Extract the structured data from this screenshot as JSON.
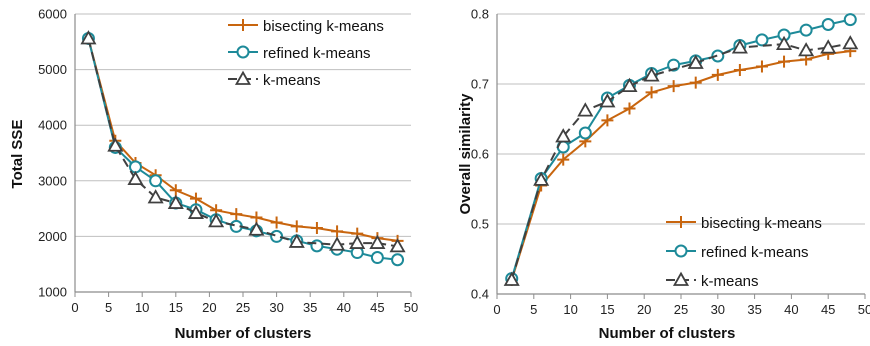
{
  "colors": {
    "bisecting": "#c8650e",
    "refined": "#1d8a99",
    "kmeans": "#404040",
    "grid": "#bfbfbf",
    "axis": "#8c8c8c"
  },
  "chart_data": [
    {
      "type": "line",
      "xlabel": "Number of clusters",
      "ylabel": "Total SSE",
      "xlim": [
        0,
        50
      ],
      "ylim": [
        1000,
        6000
      ],
      "xticks": [
        "0",
        "5",
        "10",
        "15",
        "20",
        "25",
        "30",
        "35",
        "40",
        "45",
        "50"
      ],
      "yticks": [
        "1000",
        "2000",
        "3000",
        "4000",
        "5000",
        "6000"
      ],
      "grid": "horizontal",
      "legend_position": "top-right",
      "series": [
        {
          "name": "bisecting k-means",
          "marker": "plus",
          "x": [
            2,
            6,
            9,
            12,
            15,
            18,
            21,
            24,
            27,
            30,
            33,
            36,
            39,
            42,
            45,
            48
          ],
          "y": [
            5560,
            3720,
            3320,
            3100,
            2830,
            2680,
            2470,
            2400,
            2340,
            2250,
            2180,
            2150,
            2090,
            2050,
            1970,
            1920
          ]
        },
        {
          "name": "refined k-means",
          "marker": "circle",
          "x": [
            2,
            6,
            9,
            12,
            15,
            18,
            21,
            24,
            27,
            30,
            33,
            36,
            39,
            42,
            45,
            48
          ],
          "y": [
            5560,
            3600,
            3250,
            3000,
            2600,
            2480,
            2300,
            2180,
            2100,
            2000,
            1920,
            1830,
            1770,
            1710,
            1620,
            1580
          ]
        },
        {
          "name": "k-means",
          "marker": "triangle",
          "x": [
            2,
            6,
            9,
            12,
            15,
            18,
            21,
            27,
            33,
            39,
            42,
            45,
            48
          ],
          "y": [
            5560,
            3630,
            3030,
            2700,
            2600,
            2420,
            2270,
            2120,
            1900,
            1850,
            1880,
            1880,
            1820
          ]
        }
      ]
    },
    {
      "type": "line",
      "xlabel": "Number of clusters",
      "ylabel": "Overall similarity",
      "xlim": [
        0,
        50
      ],
      "ylim": [
        0.4,
        0.8
      ],
      "xticks": [
        "0",
        "5",
        "10",
        "15",
        "20",
        "25",
        "30",
        "35",
        "40",
        "45",
        "50"
      ],
      "yticks": [
        "0.4",
        "0.5",
        "0.6",
        "0.7",
        "0.8"
      ],
      "grid": "horizontal",
      "legend_position": "bottom-right",
      "series": [
        {
          "name": "bisecting k-means",
          "marker": "plus",
          "x": [
            2,
            6,
            9,
            12,
            15,
            18,
            21,
            24,
            27,
            30,
            33,
            36,
            39,
            42,
            45,
            48
          ],
          "y": [
            0.42,
            0.555,
            0.592,
            0.618,
            0.648,
            0.665,
            0.688,
            0.697,
            0.702,
            0.713,
            0.72,
            0.725,
            0.732,
            0.735,
            0.743,
            0.747
          ]
        },
        {
          "name": "refined k-means",
          "marker": "circle",
          "x": [
            2,
            6,
            9,
            12,
            15,
            18,
            21,
            24,
            27,
            30,
            33,
            36,
            39,
            42,
            45,
            48
          ],
          "y": [
            0.422,
            0.565,
            0.61,
            0.63,
            0.68,
            0.698,
            0.715,
            0.727,
            0.733,
            0.74,
            0.755,
            0.763,
            0.77,
            0.777,
            0.785,
            0.792
          ]
        },
        {
          "name": "k-means",
          "marker": "triangle",
          "x": [
            2,
            6,
            9,
            12,
            15,
            18,
            21,
            27,
            33,
            39,
            42,
            45,
            48
          ],
          "y": [
            0.42,
            0.563,
            0.625,
            0.662,
            0.675,
            0.697,
            0.712,
            0.73,
            0.752,
            0.757,
            0.748,
            0.752,
            0.758
          ]
        }
      ]
    }
  ]
}
